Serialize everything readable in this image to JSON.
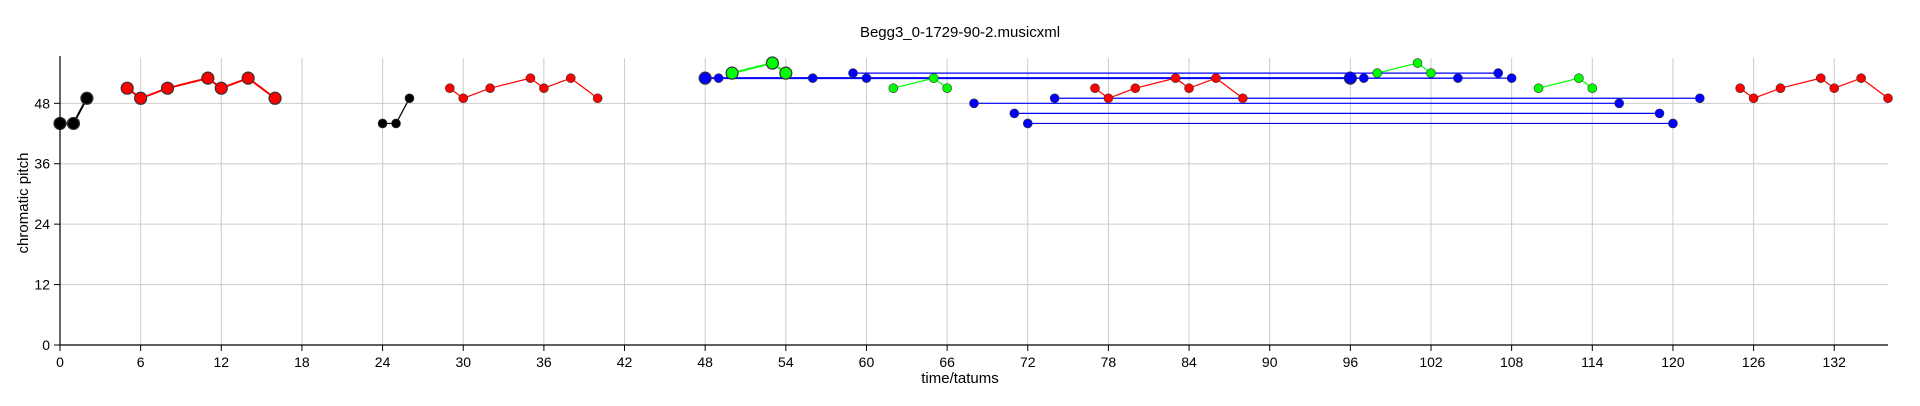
{
  "chart_data": {
    "type": "line",
    "title": "Begg3_0-1729-90-2.musicxml",
    "xlabel": "time/tatums",
    "ylabel": "chromatic pitch",
    "xlim": [
      0,
      136
    ],
    "ylim": [
      0,
      57
    ],
    "xticks": [
      0,
      6,
      12,
      18,
      24,
      30,
      36,
      42,
      48,
      54,
      60,
      66,
      72,
      78,
      84,
      90,
      96,
      102,
      108,
      114,
      120,
      126,
      132
    ],
    "yticks": [
      0,
      12,
      24,
      36,
      48
    ],
    "grid": true,
    "series": [
      {
        "color": "#000000",
        "marker": "large",
        "points": [
          [
            0,
            44
          ],
          [
            1,
            44
          ],
          [
            2,
            49
          ]
        ]
      },
      {
        "color": "#ff0000",
        "marker": "large",
        "points": [
          [
            5,
            51
          ],
          [
            6,
            49
          ],
          [
            8,
            51
          ],
          [
            11,
            53
          ],
          [
            12,
            51
          ],
          [
            14,
            53
          ],
          [
            16,
            49
          ]
        ]
      },
      {
        "color": "#000000",
        "marker": "small",
        "points": [
          [
            24,
            44
          ],
          [
            25,
            44
          ],
          [
            26,
            49
          ]
        ]
      },
      {
        "color": "#ff0000",
        "marker": "small",
        "points": [
          [
            29,
            51
          ],
          [
            30,
            49
          ],
          [
            32,
            51
          ],
          [
            35,
            53
          ],
          [
            36,
            51
          ],
          [
            38,
            53
          ],
          [
            40,
            49
          ]
        ]
      },
      {
        "color": "#0000ff",
        "marker": "large",
        "points": [
          [
            48,
            53
          ],
          [
            96,
            53
          ]
        ]
      },
      {
        "color": "#0000ff",
        "marker": "small",
        "points": [
          [
            49,
            53
          ],
          [
            97,
            53
          ]
        ]
      },
      {
        "color": "#00ff00",
        "marker": "large",
        "points": [
          [
            50,
            54
          ],
          [
            53,
            56
          ],
          [
            54,
            54
          ]
        ]
      },
      {
        "color": "#0000ff",
        "marker": "small",
        "points": [
          [
            56,
            53
          ],
          [
            104,
            53
          ]
        ]
      },
      {
        "color": "#0000ff",
        "marker": "small",
        "points": [
          [
            59,
            54
          ],
          [
            107,
            54
          ]
        ]
      },
      {
        "color": "#0000ff",
        "marker": "small",
        "points": [
          [
            60,
            53
          ],
          [
            108,
            53
          ]
        ]
      },
      {
        "color": "#00ff00",
        "marker": "small",
        "points": [
          [
            62,
            51
          ],
          [
            65,
            53
          ],
          [
            66,
            51
          ]
        ]
      },
      {
        "color": "#0000ff",
        "marker": "small",
        "points": [
          [
            68,
            48
          ],
          [
            116,
            48
          ]
        ]
      },
      {
        "color": "#0000ff",
        "marker": "small",
        "points": [
          [
            71,
            46
          ],
          [
            119,
            46
          ]
        ]
      },
      {
        "color": "#0000ff",
        "marker": "small",
        "points": [
          [
            72,
            44
          ],
          [
            120,
            44
          ]
        ]
      },
      {
        "color": "#0000ff",
        "marker": "small",
        "points": [
          [
            74,
            49
          ],
          [
            122,
            49
          ]
        ]
      },
      {
        "color": "#ff0000",
        "marker": "small",
        "points": [
          [
            77,
            51
          ],
          [
            78,
            49
          ],
          [
            80,
            51
          ],
          [
            83,
            53
          ],
          [
            84,
            51
          ],
          [
            86,
            53
          ],
          [
            88,
            49
          ]
        ]
      },
      {
        "color": "#00ff00",
        "marker": "small",
        "points": [
          [
            98,
            54
          ],
          [
            101,
            56
          ],
          [
            102,
            54
          ]
        ]
      },
      {
        "color": "#00ff00",
        "marker": "small",
        "points": [
          [
            110,
            51
          ],
          [
            113,
            53
          ],
          [
            114,
            51
          ]
        ]
      },
      {
        "color": "#ff0000",
        "marker": "small",
        "points": [
          [
            125,
            51
          ],
          [
            126,
            49
          ],
          [
            128,
            51
          ],
          [
            131,
            53
          ],
          [
            132,
            51
          ],
          [
            134,
            53
          ],
          [
            136,
            49
          ]
        ]
      }
    ]
  }
}
